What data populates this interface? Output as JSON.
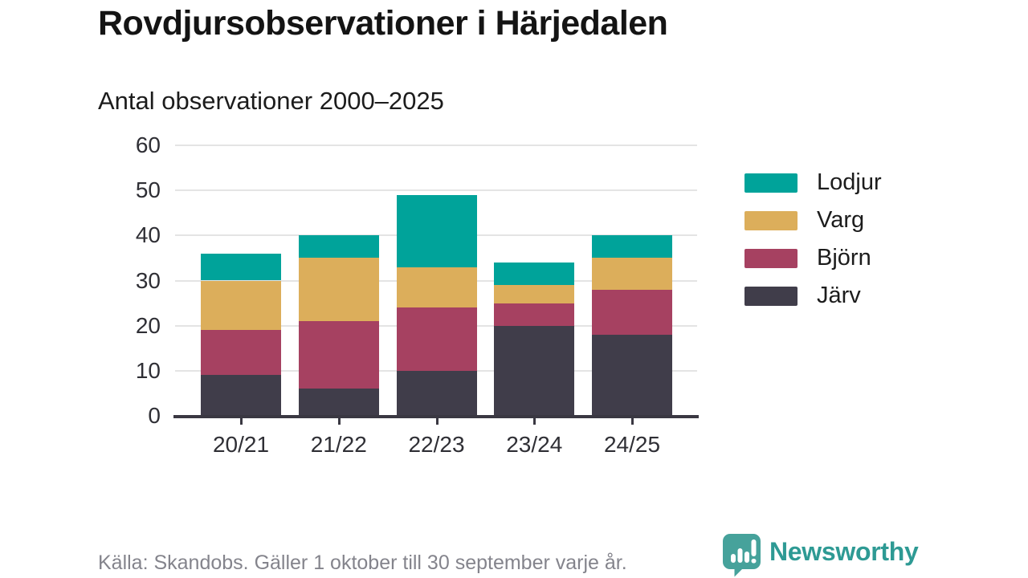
{
  "header": {
    "title": "Rovdjursobservationer i Härjedalen",
    "subtitle": "Antal observationer 2000–2025"
  },
  "chart_data": {
    "type": "bar",
    "stacked": true,
    "title": "Rovdjursobservationer i Härjedalen",
    "subtitle": "Antal observationer 2000–2025",
    "categories": [
      "20/21",
      "21/22",
      "22/23",
      "23/24",
      "24/25"
    ],
    "series": [
      {
        "name": "Järv",
        "color": "#403d4a",
        "values": [
          9,
          6,
          10,
          20,
          18
        ]
      },
      {
        "name": "Björn",
        "color": "#a64161",
        "values": [
          10,
          15,
          14,
          5,
          10
        ]
      },
      {
        "name": "Varg",
        "color": "#dcae5b",
        "values": [
          11,
          14,
          9,
          4,
          7
        ]
      },
      {
        "name": "Lodjur",
        "color": "#00a39a",
        "values": [
          6,
          5,
          16,
          5,
          5
        ]
      }
    ],
    "totals": [
      36,
      40,
      49,
      34,
      40
    ],
    "xlabel": "",
    "ylabel": "",
    "ylim": [
      0,
      60
    ],
    "yticks": [
      0,
      10,
      20,
      30,
      40,
      50,
      60
    ],
    "grid": true,
    "legend_position": "right",
    "legend_order": [
      "Lodjur",
      "Varg",
      "Björn",
      "Järv"
    ]
  },
  "footer": {
    "source": "Källa: Skandobs. Gäller 1 oktober till 30 september varje år.",
    "brand": "Newsworthy",
    "brand_color": "#2e9a94",
    "icon_color": "#46a29b"
  }
}
